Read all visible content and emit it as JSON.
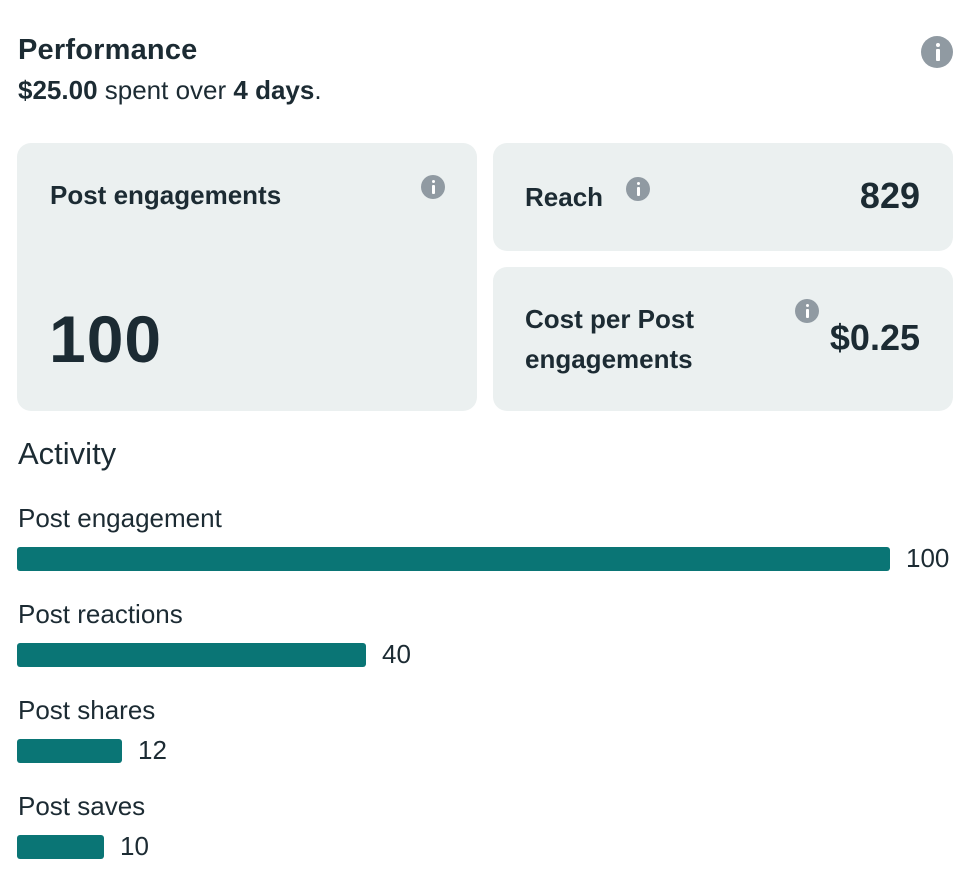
{
  "header": {
    "title": "Performance",
    "spend_amount": "$25.00",
    "spend_mid": " spent over ",
    "spend_days": "4 days",
    "spend_end": "."
  },
  "cards": {
    "post_engagements": {
      "label": "Post engagements",
      "value": "100"
    },
    "reach": {
      "label": "Reach",
      "value": "829"
    },
    "cost_per": {
      "label_line1": "Cost per Post",
      "label_line2": "engagements",
      "value": "$0.25"
    }
  },
  "activity": {
    "title": "Activity",
    "rows": [
      {
        "label": "Post engagement",
        "value": 100,
        "value_text": "100"
      },
      {
        "label": "Post reactions",
        "value": 40,
        "value_text": "40"
      },
      {
        "label": "Post shares",
        "value": 12,
        "value_text": "12"
      },
      {
        "label": "Post saves",
        "value": 10,
        "value_text": "10"
      }
    ],
    "bar_color": "#0a7575"
  },
  "colors": {
    "card_bg": "#ebf0f0",
    "text": "#1c2b33",
    "info_icon": "#909aa2"
  }
}
